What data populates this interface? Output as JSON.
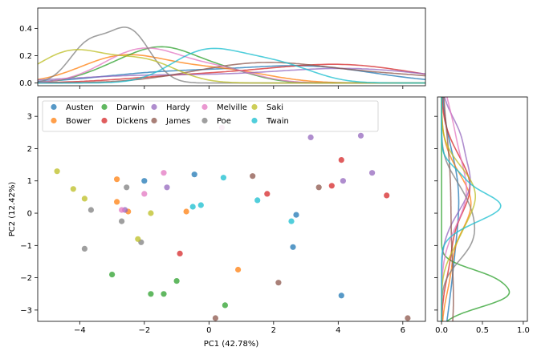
{
  "chart_data": {
    "type": "scatter",
    "title": "",
    "xlabel": "PC1 (42.78%)",
    "ylabel": "PC2 (12.42%)",
    "xlim": [
      -5.3,
      6.7
    ],
    "ylim": [
      -3.35,
      3.6
    ],
    "x_ticks": [
      -4,
      -2,
      0,
      2,
      4,
      6
    ],
    "y_ticks": [
      -3,
      -2,
      -1,
      0,
      1,
      2,
      3
    ],
    "top_kde": {
      "ylim": [
        -0.02,
        0.55
      ],
      "y_ticks": [
        0.0,
        0.2,
        0.4
      ]
    },
    "right_kde": {
      "xlim": [
        -0.05,
        1.05
      ],
      "x_ticks": [
        0.0,
        0.5,
        1.0
      ]
    },
    "legend": {
      "placement": "top-left",
      "columns": 6
    },
    "series": [
      {
        "name": "Austen",
        "color": "#1f77b4",
        "x": [
          -2.0,
          -0.45,
          2.7,
          2.6,
          4.1
        ],
        "y": [
          1.0,
          1.2,
          -0.05,
          -1.05,
          -2.55
        ]
      },
      {
        "name": "Bower",
        "color": "#ff7f0e",
        "x": [
          -2.85,
          -2.85,
          -2.5,
          -0.7,
          0.9
        ],
        "y": [
          1.05,
          0.35,
          0.05,
          0.05,
          -1.75
        ]
      },
      {
        "name": "Darwin",
        "color": "#2ca02c",
        "x": [
          -3.0,
          -1.8,
          -1.4,
          -1.0,
          0.5
        ],
        "y": [
          -1.9,
          -2.5,
          -2.5,
          -2.1,
          -2.85
        ]
      },
      {
        "name": "Dickens",
        "color": "#d62728",
        "x": [
          -0.9,
          1.8,
          3.8,
          4.1,
          5.5
        ],
        "y": [
          -1.25,
          0.6,
          0.85,
          1.65,
          0.55
        ]
      },
      {
        "name": "Hardy",
        "color": "#9467bd",
        "x": [
          -2.6,
          -1.3,
          3.15,
          4.15,
          4.7,
          5.05
        ],
        "y": [
          0.1,
          0.8,
          2.35,
          1.0,
          2.4,
          1.25
        ]
      },
      {
        "name": "James",
        "color": "#8c564b",
        "x": [
          1.35,
          2.15,
          3.4,
          0.2,
          6.15
        ],
        "y": [
          1.15,
          -2.15,
          0.8,
          -3.25,
          -3.25
        ]
      },
      {
        "name": "Melville",
        "color": "#e377c2",
        "x": [
          -2.0,
          -1.4,
          0.4,
          -2.7
        ],
        "y": [
          0.6,
          1.25,
          2.65,
          0.1
        ]
      },
      {
        "name": "Poe",
        "color": "#7f7f7f",
        "x": [
          -3.65,
          -3.85,
          -2.7,
          -2.55,
          -2.1
        ],
        "y": [
          0.1,
          -1.1,
          -0.25,
          0.8,
          -0.9
        ]
      },
      {
        "name": "Saki",
        "color": "#bcbd22",
        "x": [
          -4.7,
          -4.2,
          -3.85,
          -2.2,
          -1.8
        ],
        "y": [
          1.3,
          0.75,
          0.45,
          -0.8,
          0.0
        ]
      },
      {
        "name": "Twain",
        "color": "#17becf",
        "x": [
          -0.5,
          -0.25,
          0.45,
          1.5,
          2.55
        ],
        "y": [
          0.2,
          0.25,
          1.1,
          0.4,
          -0.25
        ]
      }
    ]
  }
}
